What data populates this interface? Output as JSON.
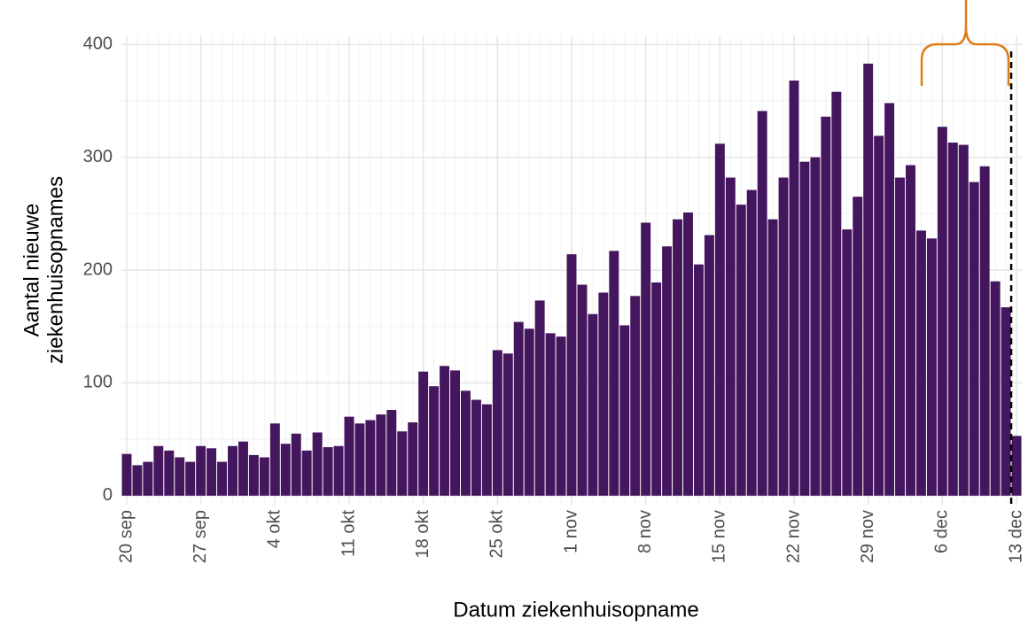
{
  "chart_data": {
    "type": "bar",
    "x_label": "Datum ziekenhuisopname",
    "y_label": [
      "Aantal nieuwe",
      "ziekenhuisopnames"
    ],
    "categories": [
      "20 sep",
      null,
      null,
      null,
      null,
      null,
      null,
      "27 sep",
      null,
      null,
      null,
      null,
      null,
      null,
      "4 okt",
      null,
      null,
      null,
      null,
      null,
      null,
      "11 okt",
      null,
      null,
      null,
      null,
      null,
      null,
      "18 okt",
      null,
      null,
      null,
      null,
      null,
      null,
      "25 okt",
      null,
      null,
      null,
      null,
      null,
      null,
      "1 nov",
      null,
      null,
      null,
      null,
      null,
      null,
      "8 nov",
      null,
      null,
      null,
      null,
      null,
      null,
      "15 nov",
      null,
      null,
      null,
      null,
      null,
      null,
      "22 nov",
      null,
      null,
      null,
      null,
      null,
      null,
      "29 nov",
      null,
      null,
      null,
      null,
      null,
      null,
      "6 dec",
      null,
      null,
      null,
      null,
      null,
      null,
      "13 dec"
    ],
    "values": [
      37,
      27,
      30,
      44,
      40,
      34,
      30,
      44,
      42,
      30,
      44,
      48,
      36,
      34,
      64,
      46,
      55,
      40,
      56,
      43,
      44,
      70,
      64,
      67,
      72,
      76,
      57,
      65,
      110,
      97,
      115,
      111,
      93,
      85,
      81,
      129,
      126,
      154,
      148,
      173,
      144,
      141,
      214,
      187,
      161,
      180,
      217,
      151,
      177,
      242,
      189,
      221,
      245,
      251,
      205,
      231,
      312,
      282,
      258,
      271,
      341,
      245,
      282,
      368,
      296,
      300,
      336,
      358,
      236,
      265,
      383,
      319,
      348,
      282,
      293,
      235,
      228,
      327,
      313,
      311,
      278,
      292,
      190,
      167,
      53
    ],
    "color": "#43165e",
    "ylim": [
      -8,
      408
    ],
    "yticks": [
      0,
      100,
      200,
      300,
      400
    ],
    "grid": true
  }
}
